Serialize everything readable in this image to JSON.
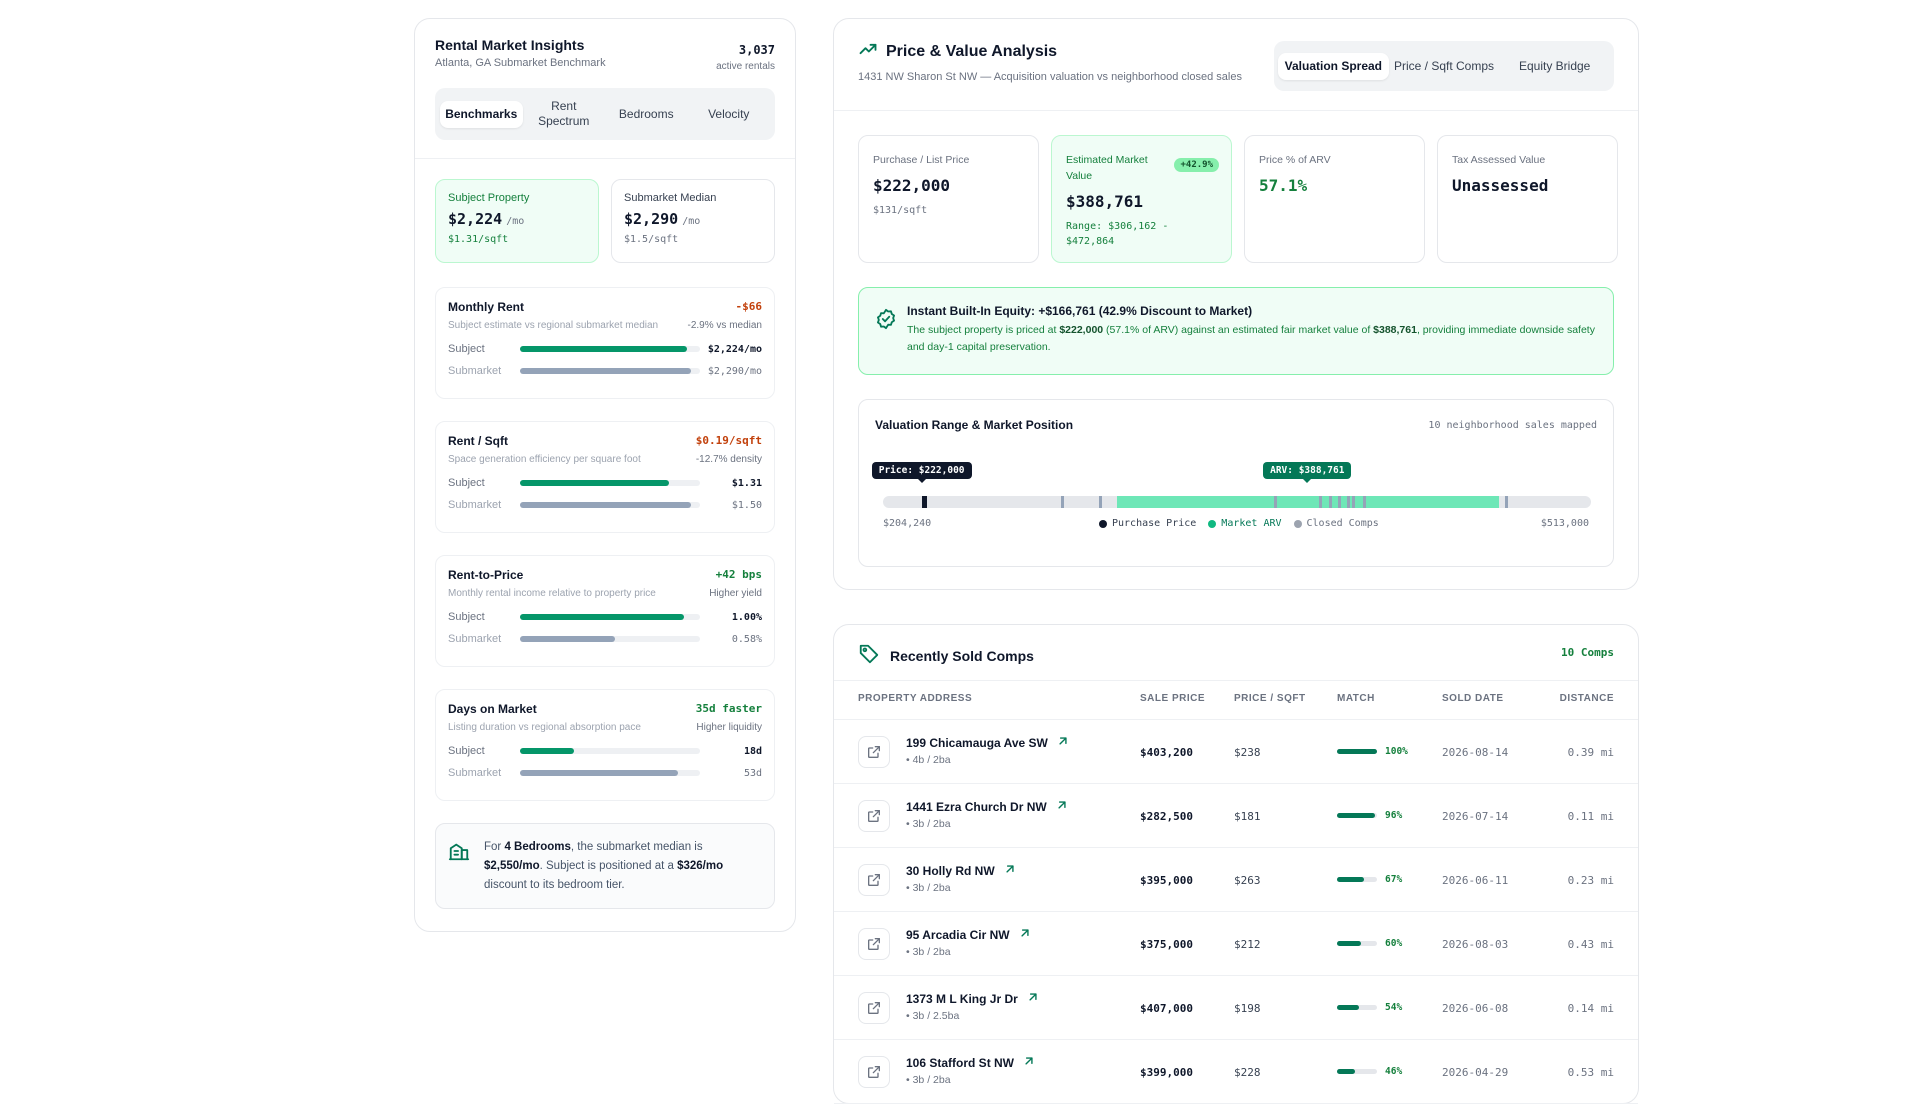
{
  "left": {
    "title": "Rental Market Insights",
    "subtitle": "Atlanta, GA Submarket Benchmark",
    "count": "3,037",
    "count_label": "active rentals",
    "tabs": [
      {
        "label": "Benchmarks",
        "active": true
      },
      {
        "label": "Rent Spectrum",
        "active": false
      },
      {
        "label": "Bedrooms",
        "active": false
      },
      {
        "label": "Velocity",
        "active": false
      }
    ],
    "subject_card": {
      "label": "Subject Property",
      "value": "$2,224",
      "per": "/mo",
      "sqft": "$1.31/sqft"
    },
    "median_card": {
      "label": "Submarket Median",
      "value": "$2,290",
      "per": "/mo",
      "sqft": "$1.5/sqft"
    },
    "metrics": [
      {
        "title": "Monthly Rent",
        "delta": "-$66",
        "delta_color": "#c2410c",
        "sub": "Subject estimate vs regional submarket median",
        "sub_right": "-2.9% vs median",
        "subject_label": "Subject",
        "subject_value": "$2,224/mo",
        "subject_fill": 0.93,
        "subject_color": "#059669",
        "market_label": "Submarket",
        "market_value": "$2,290/mo",
        "market_fill": 0.95
      },
      {
        "title": "Rent / Sqft",
        "delta": "$0.19/sqft",
        "delta_color": "#c2410c",
        "sub": "Space generation efficiency per square foot",
        "sub_right": "-12.7% density",
        "subject_label": "Subject",
        "subject_value": "$1.31",
        "subject_fill": 0.83,
        "subject_color": "#059669",
        "market_label": "Submarket",
        "market_value": "$1.50",
        "market_fill": 0.95
      },
      {
        "title": "Rent-to-Price",
        "delta": "+42 bps",
        "delta_color": "#15803d",
        "sub": "Monthly rental income relative to property price",
        "sub_right": "Higher yield",
        "subject_label": "Subject",
        "subject_value": "1.00%",
        "subject_fill": 0.91,
        "subject_color": "#059669",
        "market_label": "Submarket",
        "market_value": "0.58%",
        "market_fill": 0.53
      },
      {
        "title": "Days on Market",
        "delta": "35d faster",
        "delta_color": "#15803d",
        "sub": "Listing duration vs regional absorption pace",
        "sub_right": "Higher liquidity",
        "subject_label": "Subject",
        "subject_value": "18d",
        "subject_fill": 0.3,
        "subject_color": "#059669",
        "market_label": "Submarket",
        "market_value": "53d",
        "market_fill": 0.88
      }
    ],
    "insight": {
      "pre": "For ",
      "bed": "4 Bedrooms",
      "mid": ", the submarket median is ",
      "median": "$2,550/mo",
      "mid2": ". Subject is positioned at a ",
      "discount": "$326/mo",
      "post": " discount to its bedroom tier."
    }
  },
  "analysis": {
    "title": "Price & Value Analysis",
    "subtitle": "1431 NW Sharon St NW — Acquisition valuation vs neighborhood closed sales",
    "tabs": [
      {
        "label": "Valuation Spread",
        "active": true
      },
      {
        "label": "Price / Sqft Comps",
        "active": false
      },
      {
        "label": "Equity Bridge",
        "active": false
      }
    ],
    "kpis": [
      {
        "label": "Purchase / List Price",
        "value": "$222,000",
        "sub": "$131/sqft",
        "highlight": false,
        "green": false,
        "badge": ""
      },
      {
        "label": "Estimated Market Value",
        "value": "$388,761",
        "sub": "Range: $306,162 - $472,864",
        "highlight": true,
        "green": false,
        "badge": "+42.9%"
      },
      {
        "label": "Price % of ARV",
        "value": "57.1%",
        "sub": "",
        "highlight": false,
        "green": true,
        "badge": ""
      },
      {
        "label": "Tax Assessed Value",
        "value": "Unassessed",
        "sub": "",
        "highlight": false,
        "green": false,
        "badge": ""
      }
    ],
    "equity": {
      "title": "Instant Built-In Equity: +$166,761 (42.9% Discount to Market)",
      "text_pre": "The subject property is priced at ",
      "price": "$222,000",
      "text_mid": " (57.1% of ARV) against an estimated fair market value of ",
      "value": "$388,761",
      "text_post": ", providing immediate downside safety and day-1 capital preservation."
    },
    "range": {
      "title": "Valuation Range & Market Position",
      "note": "10 neighborhood sales mapped",
      "min_label": "$204,240",
      "max_label": "$513,000",
      "min": 204240,
      "max": 513000,
      "price": 222000,
      "price_tag": "Price: $222,000",
      "arv": 388761,
      "arv_tag": "ARV: $388,761",
      "range_low": 306162,
      "range_high": 472864,
      "comps": [
        282500,
        299000,
        375000,
        395000,
        399000,
        403200,
        407000,
        409000,
        414000,
        476000
      ],
      "legend": [
        {
          "label": "Purchase Price",
          "color": "#0f172a"
        },
        {
          "label": "Market ARV",
          "color": "#10b981"
        },
        {
          "label": "Closed Comps",
          "color": "#9ca3af"
        }
      ]
    }
  },
  "comps": {
    "title": "Recently Sold Comps",
    "count": "10 Comps",
    "headers": {
      "address": "PROPERTY ADDRESS",
      "price": "SALE PRICE",
      "psf": "PRICE / SQFT",
      "match": "MATCH",
      "date": "SOLD DATE",
      "dist": "DISTANCE"
    },
    "rows": [
      {
        "address": "199 Chicamauga Ave SW",
        "beds": "• 4b / 2ba",
        "price": "$403,200",
        "psf": "$238",
        "match": 100,
        "match_label": "100%",
        "date": "2026-08-14",
        "dist": "0.39 mi"
      },
      {
        "address": "1441 Ezra Church Dr NW",
        "beds": "• 3b / 2ba",
        "price": "$282,500",
        "psf": "$181",
        "match": 96,
        "match_label": "96%",
        "date": "2026-07-14",
        "dist": "0.11 mi"
      },
      {
        "address": "30 Holly Rd NW",
        "beds": "• 3b / 2ba",
        "price": "$395,000",
        "psf": "$263",
        "match": 67,
        "match_label": "67%",
        "date": "2026-06-11",
        "dist": "0.23 mi"
      },
      {
        "address": "95 Arcadia Cir NW",
        "beds": "• 3b / 2ba",
        "price": "$375,000",
        "psf": "$212",
        "match": 60,
        "match_label": "60%",
        "date": "2026-08-03",
        "dist": "0.43 mi"
      },
      {
        "address": "1373 M L King Jr Dr",
        "beds": "• 3b / 2.5ba",
        "price": "$407,000",
        "psf": "$198",
        "match": 54,
        "match_label": "54%",
        "date": "2026-06-08",
        "dist": "0.14 mi"
      },
      {
        "address": "106 Stafford St NW",
        "beds": "• 3b / 2ba",
        "price": "$399,000",
        "psf": "$228",
        "match": 46,
        "match_label": "46%",
        "date": "2026-04-29",
        "dist": "0.53 mi"
      }
    ]
  }
}
